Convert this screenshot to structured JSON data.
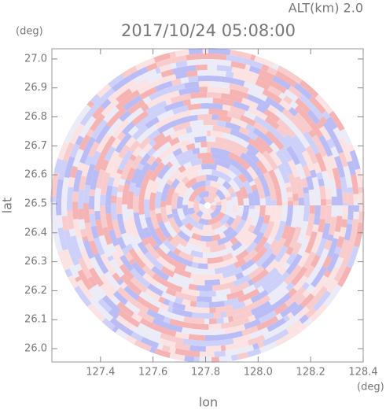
{
  "chart_data": {
    "type": "radar-ppi",
    "title": "2017/10/24 05:08:00",
    "altitude": "ALT(km) 2.0",
    "x_label": "lon",
    "y_label": "lat",
    "x_unit": "(deg)",
    "y_unit": "(deg)",
    "xlim": [
      127.215,
      128.4
    ],
    "ylim": [
      25.954,
      27.035
    ],
    "xticks": [
      127.4,
      127.6,
      127.8,
      {
        "value": 128,
        "label": "128.0"
      },
      128.2,
      128.4
    ],
    "yticks": [
      {
        "value": 26,
        "label": "26.0"
      },
      26.1,
      26.2,
      26.3,
      26.4,
      26.5,
      26.6,
      26.7,
      26.8,
      26.9,
      {
        "value": 27,
        "label": "27.0"
      }
    ]
  }
}
